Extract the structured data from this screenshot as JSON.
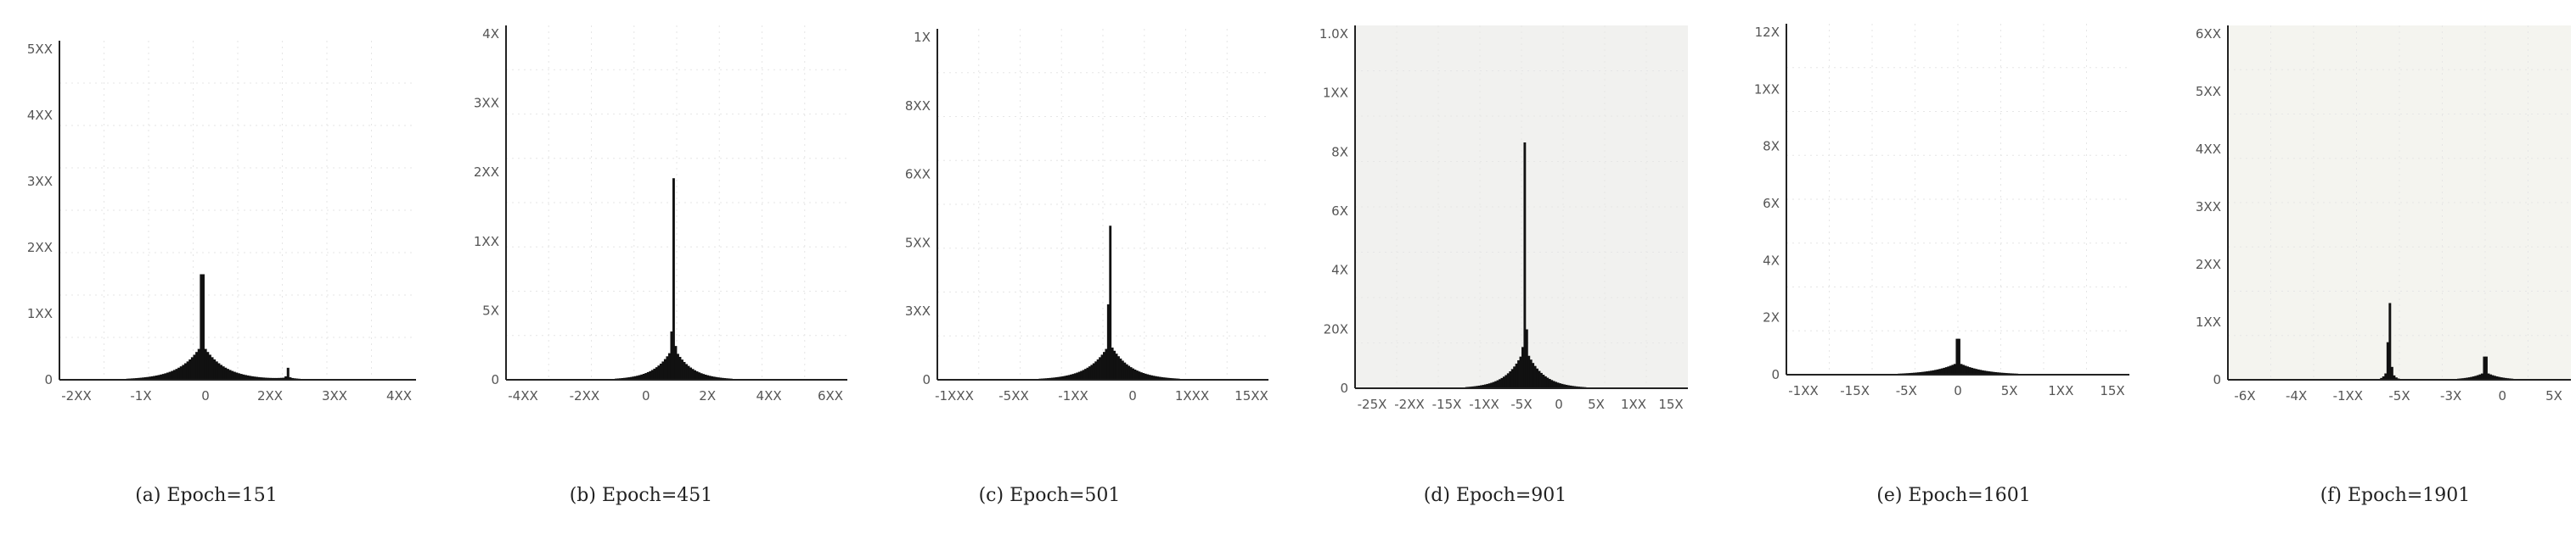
{
  "chart_data": [
    {
      "type": "histogram",
      "caption": "(a) Epoch=151",
      "yticks": [
        "0",
        "1XX",
        "2XX",
        "3XX",
        "4XX",
        "5XX"
      ],
      "xticks": [
        "-2XX",
        "-1X",
        "0",
        "2XX",
        "3XX",
        "4XX"
      ],
      "background": "#ffffff",
      "peak_position": 0.4,
      "peak_height": 0.76,
      "spread": 0.06,
      "secondary": [
        {
          "position": 0.64,
          "height": 0.04,
          "spread": 0.03
        }
      ]
    },
    {
      "type": "histogram",
      "caption": "(b) Epoch=451",
      "yticks": [
        "0",
        "5X",
        "1XX",
        "2XX",
        "3XX",
        "4X"
      ],
      "xticks": [
        "-4XX",
        "-2XX",
        "0",
        "2X",
        "4XX",
        "6XX"
      ],
      "background": "#ffffff",
      "peak_position": 0.49,
      "peak_height": 0.68,
      "spread": 0.05,
      "secondary": []
    },
    {
      "type": "histogram",
      "caption": "(c) Epoch=501",
      "yticks": [
        "0",
        "3XX",
        "5XX",
        "6XX",
        "8XX",
        "1X"
      ],
      "xticks": [
        "-1XXX",
        "-5XX",
        "-1XX",
        "0",
        "1XXX",
        "15XX"
      ],
      "background": "#ffffff",
      "peak_position": 0.52,
      "peak_height": 0.75,
      "spread": 0.06,
      "secondary": []
    },
    {
      "type": "histogram",
      "caption": "(d) Epoch=901",
      "yticks": [
        "0",
        "20X",
        "4X",
        "6X",
        "8X",
        "1XX",
        "1.0X"
      ],
      "xticks": [
        "-25X",
        "-2XX",
        "-15X",
        "-1XX",
        "-5X",
        "0",
        "5X",
        "1XX",
        "15X"
      ],
      "background": "#f1f1ef",
      "peak_position": 0.51,
      "peak_height": 0.81,
      "spread": 0.05,
      "secondary": []
    },
    {
      "type": "histogram",
      "caption": "(e) Epoch=1601",
      "yticks": [
        "0",
        "2X",
        "4X",
        "6X",
        "8X",
        "1XX",
        "12X"
      ],
      "xticks": [
        "-1XX",
        "-15X",
        "-5X",
        "0",
        "5X",
        "1XX",
        "15X"
      ],
      "background": "#ffffff",
      "peak_position": 0.5,
      "peak_height": 0.25,
      "spread": 0.07,
      "secondary": []
    },
    {
      "type": "histogram",
      "caption": "(f) Epoch=1901",
      "yticks": [
        "0",
        "1XX",
        "2XX",
        "3XX",
        "4XX",
        "5XX",
        "6XX"
      ],
      "xticks": [
        "-6X",
        "-4X",
        "-1XX",
        "-5X",
        "-3X",
        "0",
        "5X"
      ],
      "background": "#f4f4ef",
      "peak_position": 0.47,
      "peak_height": 0.37,
      "spread": 0.01,
      "secondary": [
        {
          "position": 0.75,
          "height": 0.16,
          "spread": 0.04
        }
      ]
    }
  ]
}
